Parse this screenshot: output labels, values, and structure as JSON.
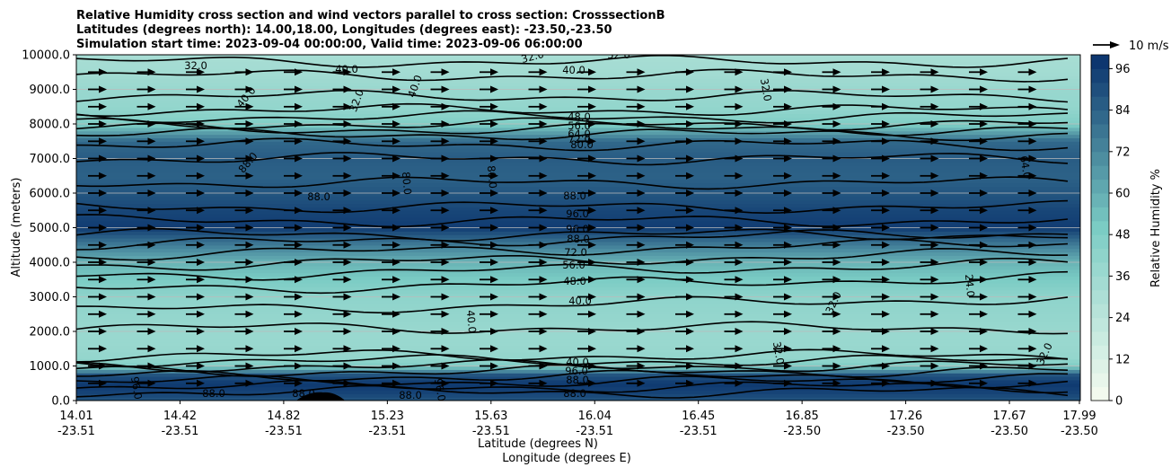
{
  "chart_data": {
    "type": "heatmap",
    "title_lines": [
      "Relative Humidity cross section and wind vectors parallel to cross section: CrosssectionB",
      "Latitudes (degrees north): 14.00,18.00, Longitudes (degrees east): -23.50,-23.50",
      "Simulation start time: 2023-09-04 00:00:00, Valid time: 2023-09-06 06:00:00"
    ],
    "ylabel": "Altitude (meters)",
    "xlabel_lines": [
      "Latitude (degrees N)",
      "Longitude (degrees E)"
    ],
    "ylim": [
      0,
      10000
    ],
    "y_ticks": [
      "0.0",
      "1000.0",
      "2000.0",
      "3000.0",
      "4000.0",
      "5000.0",
      "6000.0",
      "7000.0",
      "8000.0",
      "9000.0",
      "10000.0"
    ],
    "x_ticks": [
      {
        "lat": "14.01",
        "lon": "-23.51"
      },
      {
        "lat": "14.42",
        "lon": "-23.51"
      },
      {
        "lat": "14.82",
        "lon": "-23.51"
      },
      {
        "lat": "15.23",
        "lon": "-23.51"
      },
      {
        "lat": "15.63",
        "lon": "-23.51"
      },
      {
        "lat": "16.04",
        "lon": "-23.51"
      },
      {
        "lat": "16.45",
        "lon": "-23.51"
      },
      {
        "lat": "16.85",
        "lon": "-23.50"
      },
      {
        "lat": "17.26",
        "lon": "-23.50"
      },
      {
        "lat": "17.67",
        "lon": "-23.50"
      },
      {
        "lat": "17.99",
        "lon": "-23.50"
      }
    ],
    "colorbar": {
      "label": "Relative Humidity %",
      "ticks": [
        "0",
        "12",
        "24",
        "36",
        "48",
        "60",
        "72",
        "84",
        "96"
      ],
      "levels": 25,
      "max": 100,
      "cmap_low": "#f7fcf0",
      "cmap_mid": "#7bccc4",
      "cmap_high": "#08306b"
    },
    "quiver_key": "10 m/s",
    "rh_profile": {
      "altitude": [
        0,
        250,
        500,
        750,
        1000,
        1250,
        1600,
        2000,
        2500,
        3000,
        3500,
        4000,
        4500,
        5000,
        5500,
        6000,
        6500,
        7000,
        7500,
        8000,
        8500,
        9000,
        9500,
        10000
      ],
      "rh": [
        88,
        94,
        97,
        88,
        48,
        40,
        38,
        38,
        40,
        42,
        50,
        58,
        75,
        96,
        93,
        88,
        84,
        86,
        82,
        48,
        40,
        38,
        34,
        32
      ]
    },
    "contour_labels": [
      "32.0",
      "40.0",
      "32.0",
      "40.0",
      "32.0",
      "40.0",
      "32.0",
      "40.0",
      "32.0",
      "48.0",
      "56.0",
      "64.0",
      "72.0",
      "80.0",
      "64.0",
      "88.0",
      "80.0",
      "80.0",
      "88.0",
      "88.0",
      "96.0",
      "96.0",
      "88.0",
      "72.0",
      "56.0",
      "48.0",
      "40.0",
      "40.0",
      "32.0",
      "24.0",
      "32.0",
      "32.0",
      "40.0",
      "96.0",
      "88.0",
      "88.0",
      "88.0",
      "88.0",
      "96.0",
      "96.0",
      "88.0"
    ]
  }
}
